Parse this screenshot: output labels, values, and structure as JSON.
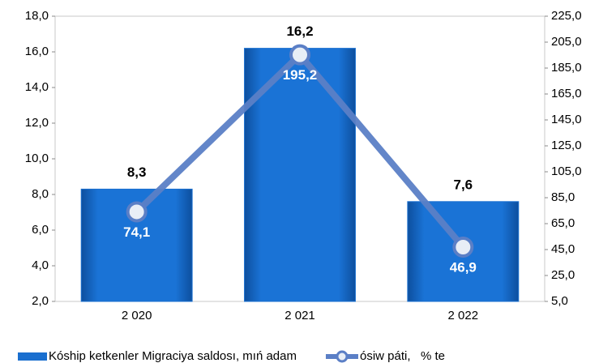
{
  "chart_data": {
    "type": "bar",
    "categories": [
      "2 020",
      "2 021",
      "2 022"
    ],
    "series": [
      {
        "name": "Kóship ketkenler Migraciya saldosı, mıń adam",
        "type": "bar",
        "color": "#1a6fcf",
        "values": [
          8.3,
          16.2,
          7.6
        ],
        "value_labels": [
          "8,3",
          "16,2",
          "7,6"
        ]
      },
      {
        "name": "ósiw páti,   % te",
        "type": "line",
        "axis": "y2",
        "color": "#5b7fc6",
        "values": [
          74.1,
          195.2,
          46.9
        ],
        "value_labels": [
          "74,1",
          "195,2",
          "46,9"
        ]
      }
    ],
    "ylim": [
      2,
      18
    ],
    "yticks": [
      {
        "value": 2,
        "label": "2,0"
      },
      {
        "value": 4,
        "label": "4,0"
      },
      {
        "value": 6,
        "label": "6,0"
      },
      {
        "value": 8,
        "label": "8,0"
      },
      {
        "value": 10,
        "label": "10,0"
      },
      {
        "value": 12,
        "label": "12,0"
      },
      {
        "value": 14,
        "label": "14,0"
      },
      {
        "value": 16,
        "label": "16,0"
      },
      {
        "value": 18,
        "label": "18,0"
      }
    ],
    "y2lim": [
      5,
      225
    ],
    "y2ticks": [
      {
        "value": 5,
        "label": "5,0"
      },
      {
        "value": 25,
        "label": "25,0"
      },
      {
        "value": 45,
        "label": "45,0"
      },
      {
        "value": 65,
        "label": "65,0"
      },
      {
        "value": 85,
        "label": "85,0"
      },
      {
        "value": 105,
        "label": "105,0"
      },
      {
        "value": 125,
        "label": "125,0"
      },
      {
        "value": 145,
        "label": "145,0"
      },
      {
        "value": 165,
        "label": "165,0"
      },
      {
        "value": 185,
        "label": "185,0"
      },
      {
        "value": 205,
        "label": "205,0"
      },
      {
        "value": 225,
        "label": "225,0"
      }
    ],
    "grid": false,
    "legend": "bottom"
  }
}
